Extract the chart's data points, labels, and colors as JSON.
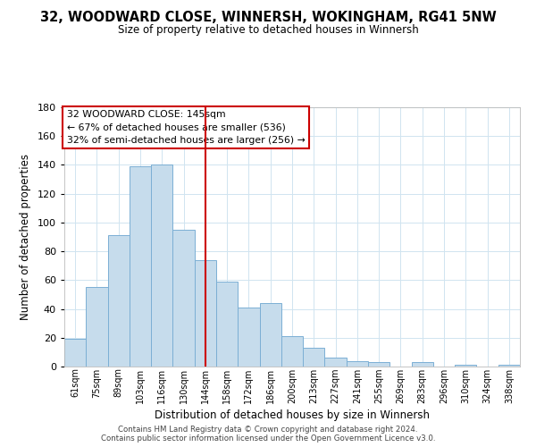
{
  "title": "32, WOODWARD CLOSE, WINNERSH, WOKINGHAM, RG41 5NW",
  "subtitle": "Size of property relative to detached houses in Winnersh",
  "xlabel": "Distribution of detached houses by size in Winnersh",
  "ylabel": "Number of detached properties",
  "bar_labels": [
    "61sqm",
    "75sqm",
    "89sqm",
    "103sqm",
    "116sqm",
    "130sqm",
    "144sqm",
    "158sqm",
    "172sqm",
    "186sqm",
    "200sqm",
    "213sqm",
    "227sqm",
    "241sqm",
    "255sqm",
    "269sqm",
    "283sqm",
    "296sqm",
    "310sqm",
    "324sqm",
    "338sqm"
  ],
  "bar_values": [
    19,
    55,
    91,
    139,
    140,
    95,
    74,
    59,
    41,
    44,
    21,
    13,
    6,
    4,
    3,
    0,
    3,
    0,
    1,
    0,
    1
  ],
  "bar_color": "#c6dcec",
  "bar_edge_color": "#7bafd4",
  "reference_line_x": 6,
  "reference_line_color": "#cc0000",
  "ylim": [
    0,
    180
  ],
  "yticks": [
    0,
    20,
    40,
    60,
    80,
    100,
    120,
    140,
    160,
    180
  ],
  "annotation_title": "32 WOODWARD CLOSE: 145sqm",
  "annotation_line1": "← 67% of detached houses are smaller (536)",
  "annotation_line2": "32% of semi-detached houses are larger (256) →",
  "annotation_box_color": "#ffffff",
  "annotation_box_edge": "#cc0000",
  "footer_line1": "Contains HM Land Registry data © Crown copyright and database right 2024.",
  "footer_line2": "Contains public sector information licensed under the Open Government Licence v3.0.",
  "background_color": "#ffffff",
  "grid_color": "#d0e4f0"
}
